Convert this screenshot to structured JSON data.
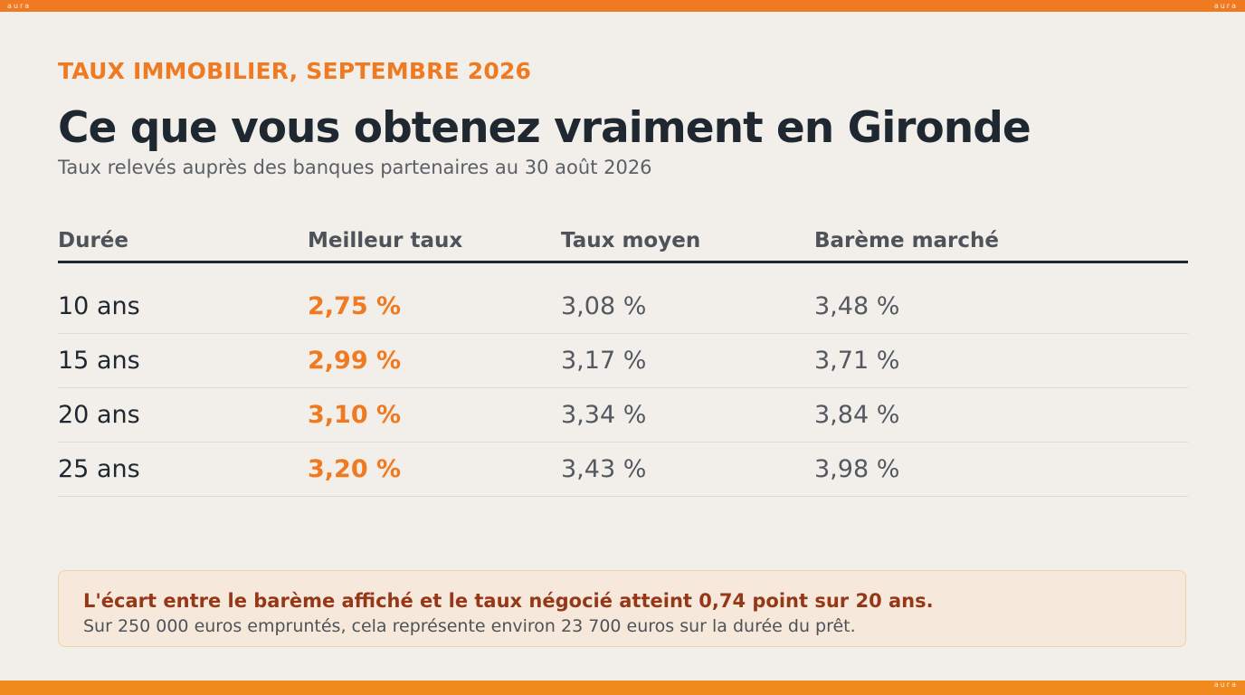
{
  "brand": {
    "mark": "aura",
    "accent": "#ef7a22",
    "callout_text_color": "#963817"
  },
  "header": {
    "kicker": "TAUX IMMOBILIER, SEPTEMBRE 2026",
    "title": "Ce que vous obtenez vraiment en Gironde",
    "subtitle": "Taux relevés auprès des banques partenaires au 30 août 2026"
  },
  "table": {
    "columns": [
      "Durée",
      "Meilleur taux",
      "Taux moyen",
      "Barème marché"
    ],
    "rows": [
      {
        "duree": "10 ans",
        "meilleur": "2,75 %",
        "moyen": "3,08 %",
        "bareme": "3,48 %"
      },
      {
        "duree": "15 ans",
        "meilleur": "2,99 %",
        "moyen": "3,17 %",
        "bareme": "3,71 %"
      },
      {
        "duree": "20 ans",
        "meilleur": "3,10 %",
        "moyen": "3,34 %",
        "bareme": "3,84 %"
      },
      {
        "duree": "25 ans",
        "meilleur": "3,20 %",
        "moyen": "3,43 %",
        "bareme": "3,98 %"
      }
    ]
  },
  "callout": {
    "lead": "L'écart entre le barème affiché et le taux négocié atteint 0,74 point sur 20 ans.",
    "body": "Sur 250 000 euros empruntés, cela représente environ 23 700 euros sur la durée du prêt."
  }
}
